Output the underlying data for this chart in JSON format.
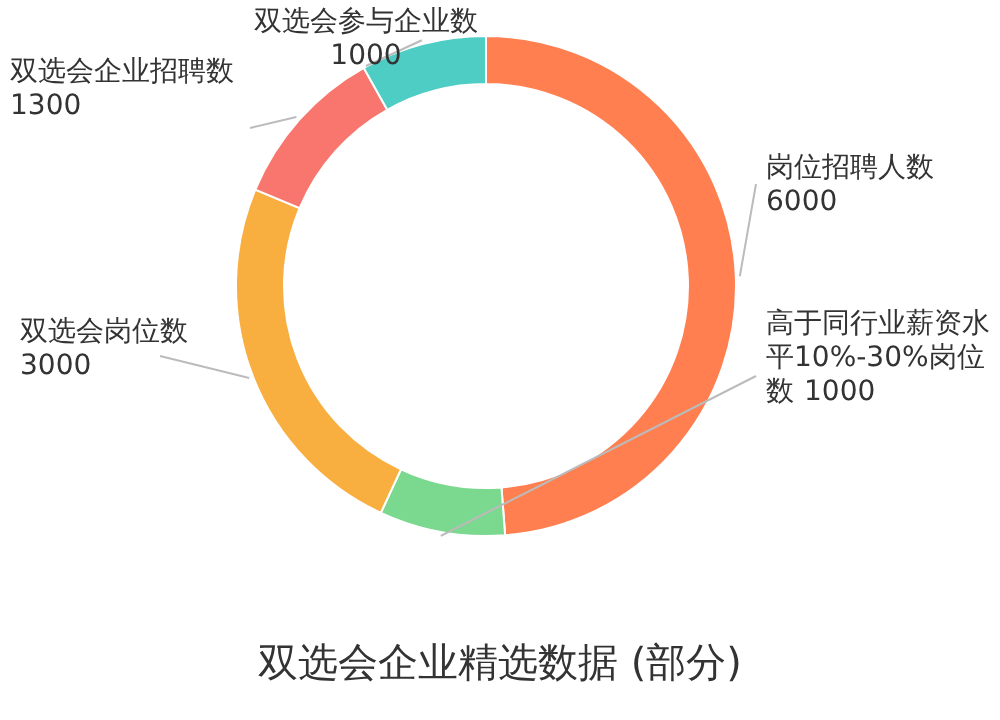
{
  "chart_data": {
    "type": "donut",
    "title": "双选会企业精选数据 (部分)",
    "categories": [
      "岗位招聘人数",
      "高于同行业薪资水平10%-30%岗位数",
      "双选会岗位数",
      "双选会企业招聘数",
      "双选会参与企业数"
    ],
    "values": [
      6000,
      1000,
      3000,
      1300,
      1000
    ],
    "colors": [
      "#ff7f50",
      "#7bd88f",
      "#f9ae40",
      "#f8766d",
      "#4ecdc4"
    ],
    "data_labels": true
  }
}
